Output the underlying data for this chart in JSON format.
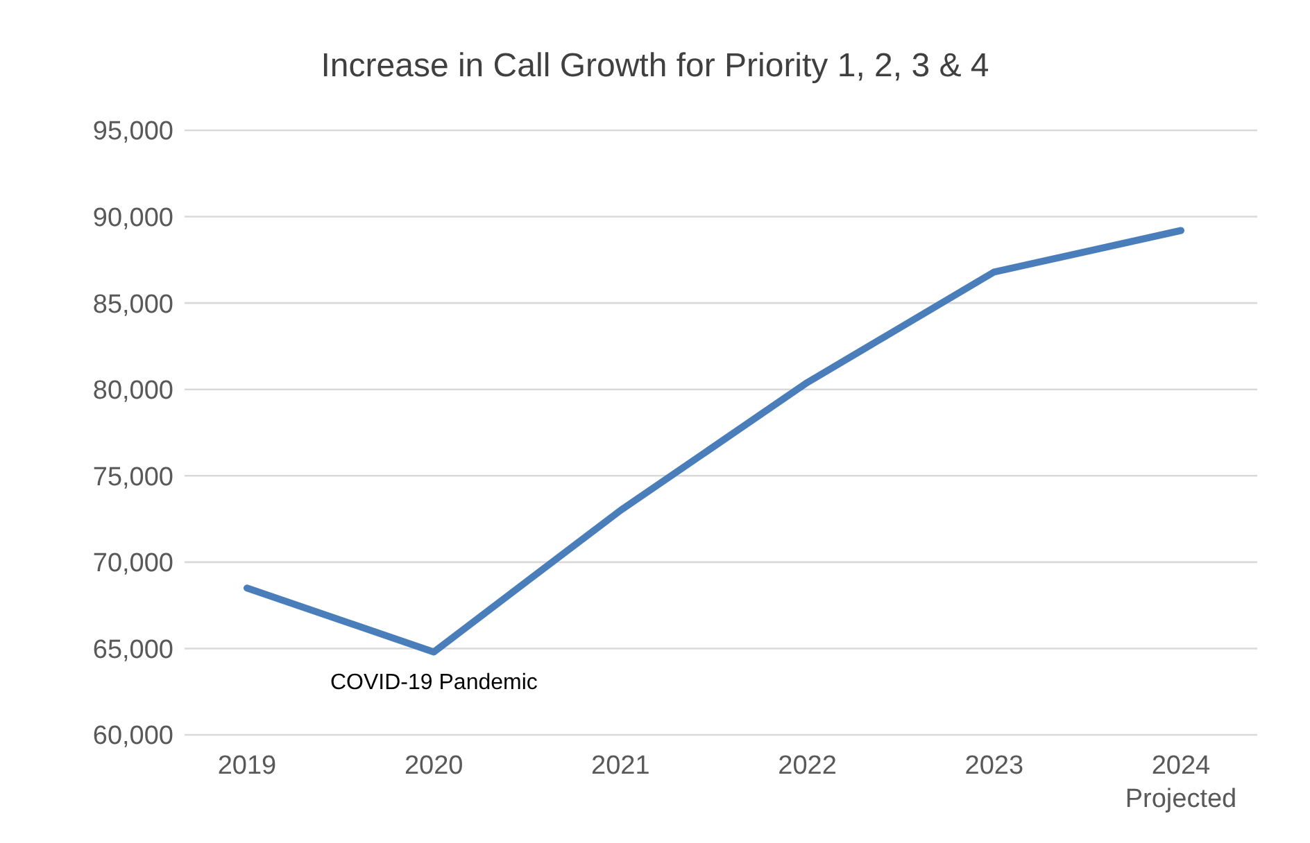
{
  "chart_data": {
    "type": "line",
    "title": "Increase in Call Growth for Priority 1, 2, 3 & 4",
    "categories": [
      "2019",
      "2020",
      "2021",
      "2022",
      "2023",
      "2024\nProjected"
    ],
    "series": [
      {
        "color": "#4a7ebb",
        "values": [
          68500,
          64800,
          73000,
          80400,
          86800,
          89200
        ]
      }
    ],
    "ylim": [
      60000,
      95000
    ],
    "yticks": [
      {
        "value": 60000,
        "label": "60,000"
      },
      {
        "value": 65000,
        "label": "65,000"
      },
      {
        "value": 70000,
        "label": "70,000"
      },
      {
        "value": 75000,
        "label": "75,000"
      },
      {
        "value": 80000,
        "label": "80,000"
      },
      {
        "value": 85000,
        "label": "85,000"
      },
      {
        "value": 90000,
        "label": "90,000"
      },
      {
        "value": 95000,
        "label": "95,000"
      }
    ],
    "grid": "y",
    "marker": "none",
    "line_style": "solid",
    "annotations": [
      "COVID-19 Pandemic"
    ]
  }
}
